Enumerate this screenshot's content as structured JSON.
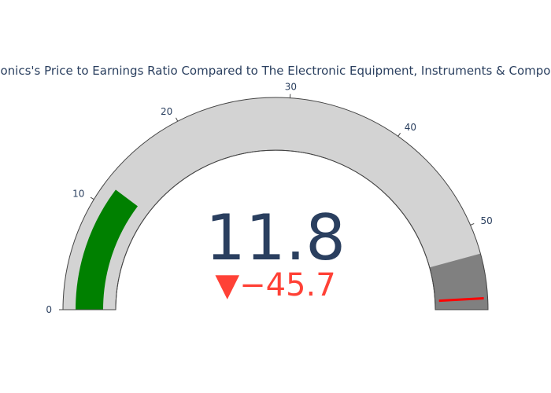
{
  "chart_data": {
    "type": "gauge",
    "title": "onics's Price to Earnings Ratio Compared to The Electronic Equipment, Instruments & Compo",
    "value": 11.8,
    "value_label": "11.8",
    "delta": -45.7,
    "delta_label": "−45.7",
    "delta_symbol": "▼",
    "range": [
      0,
      57.5
    ],
    "ticks": [
      0,
      10,
      20,
      30,
      40,
      50
    ],
    "tick_labels": [
      "0",
      "10",
      "20",
      "30",
      "40",
      "50"
    ],
    "bar_color": "#008000",
    "background_color": "#d3d3d3",
    "steps": [
      {
        "range": [
          52.6,
          57.5
        ],
        "color": "#808080"
      }
    ],
    "threshold": {
      "value": 56.5,
      "color": "#ff0000"
    },
    "value_color": "#2a3f5f",
    "delta_color": "#ff4136"
  }
}
